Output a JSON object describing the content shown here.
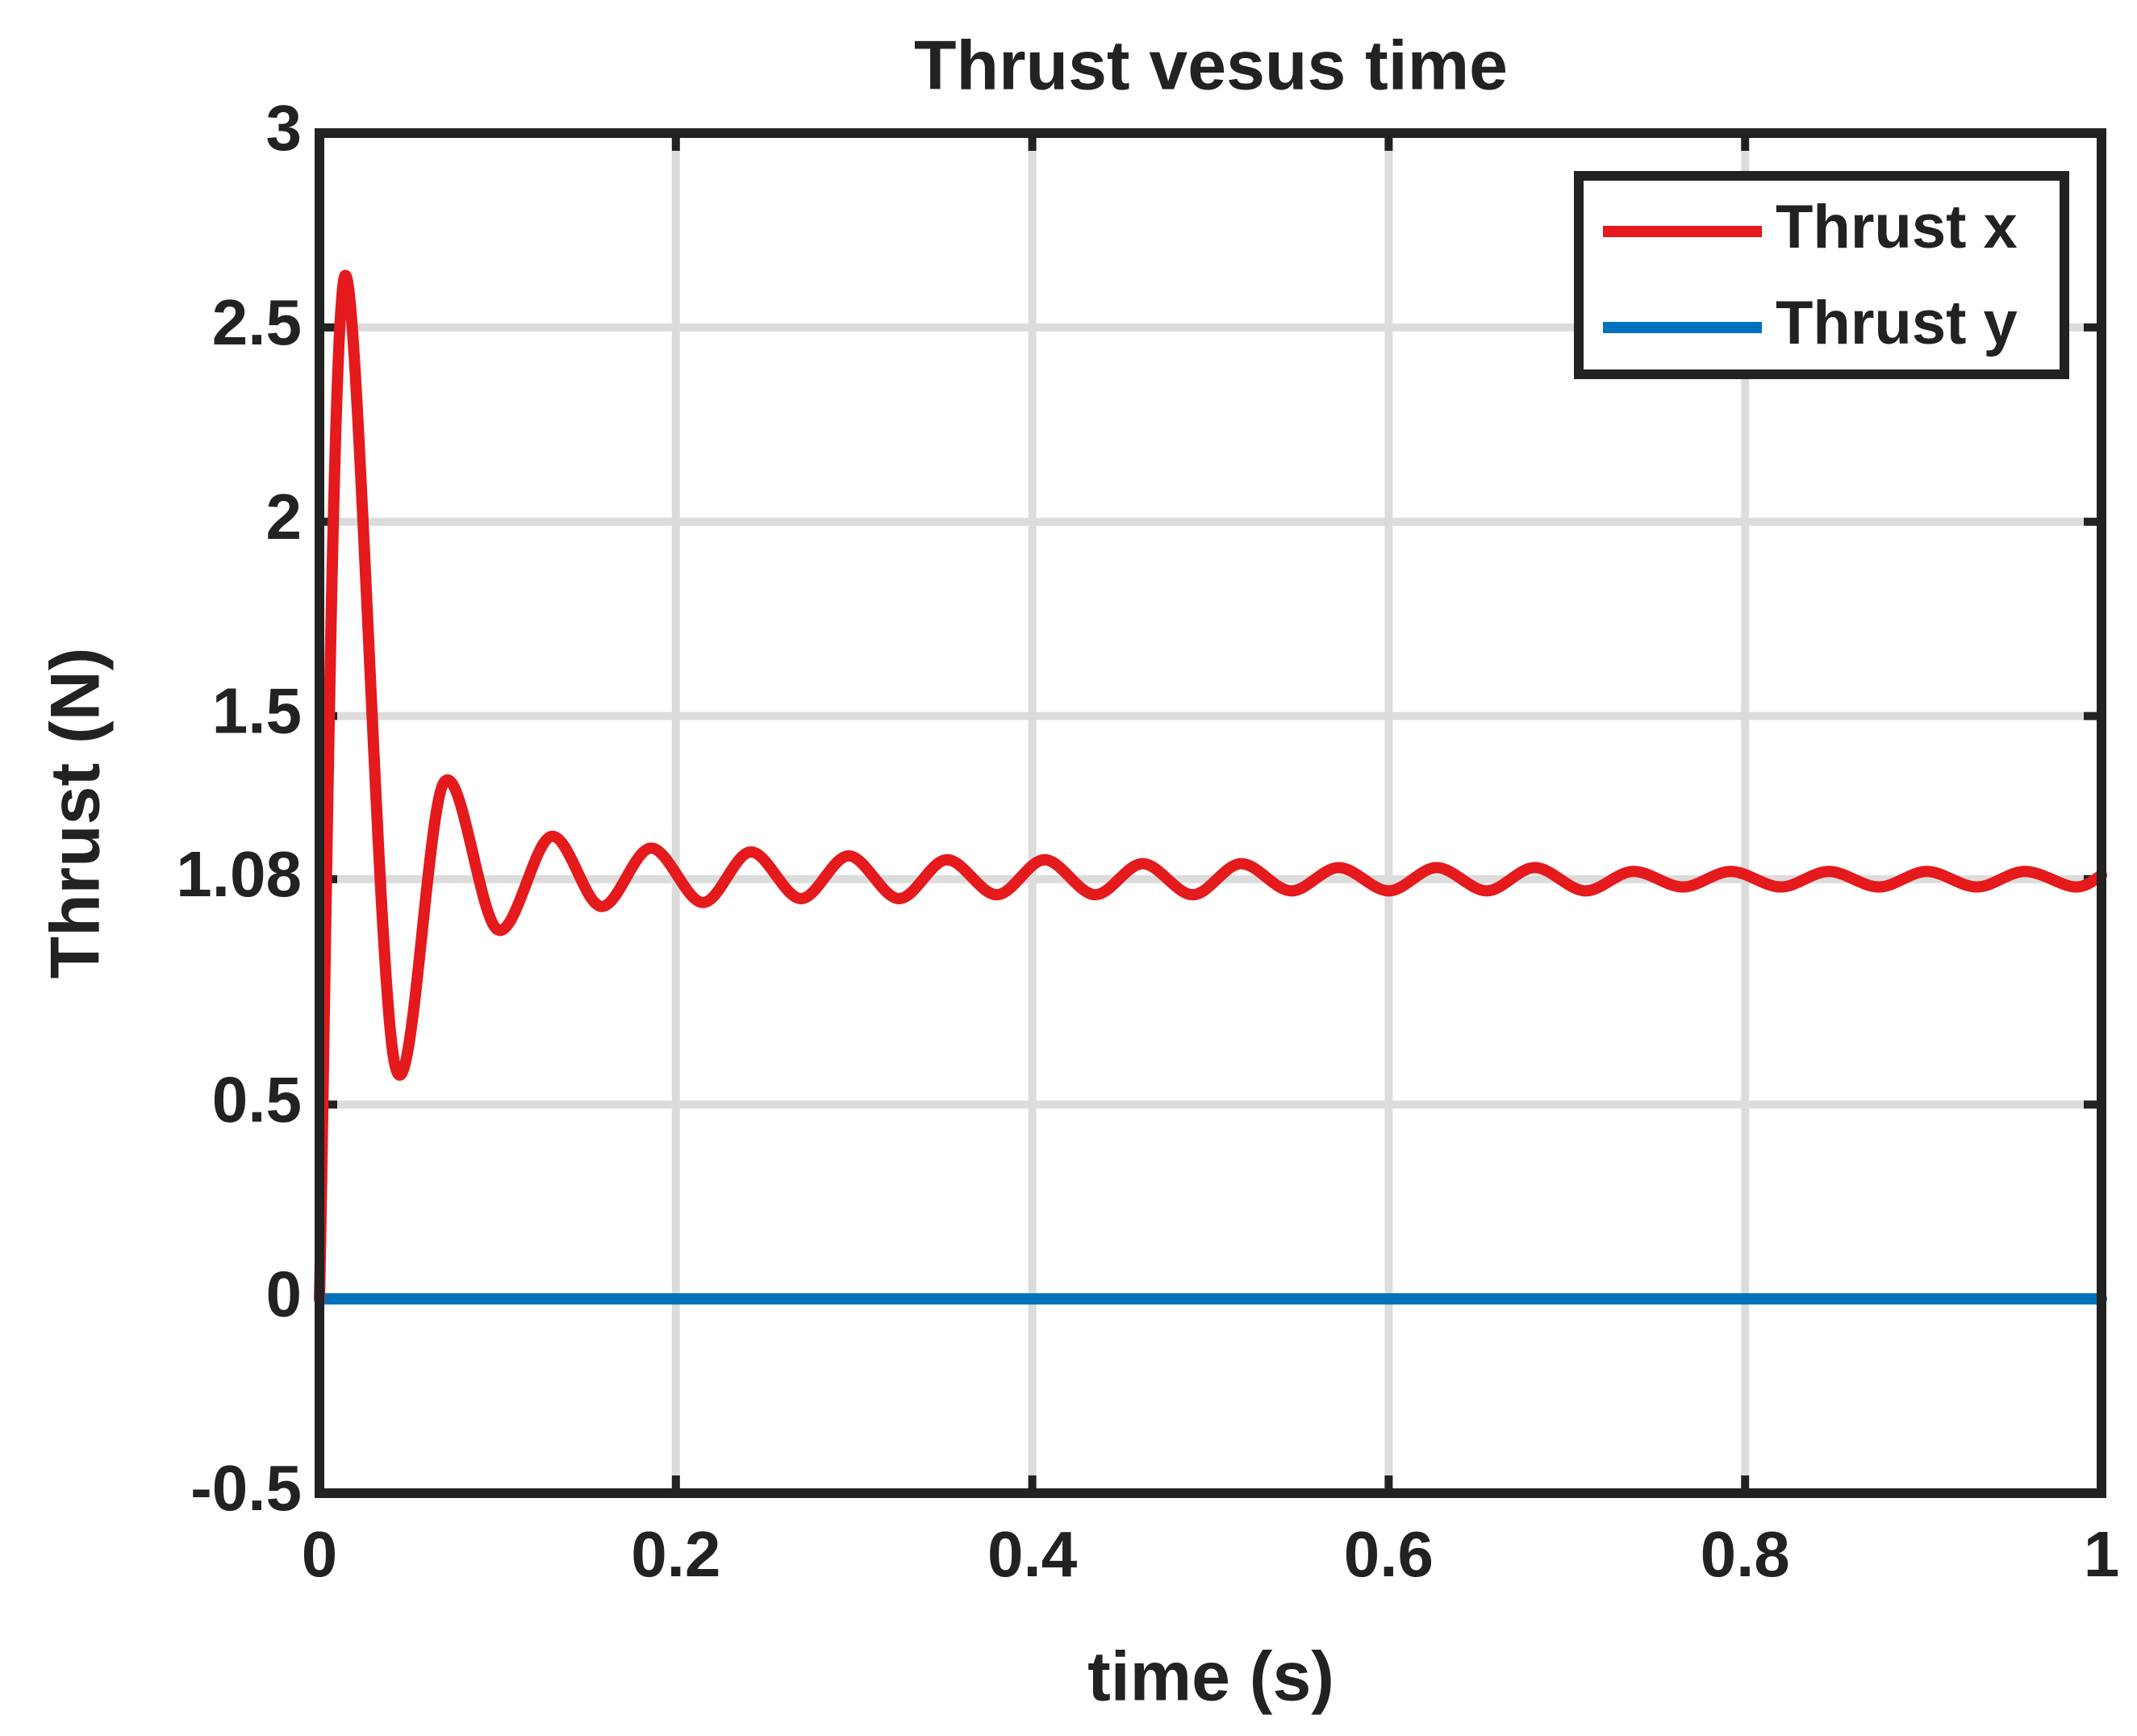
{
  "chart_data": {
    "type": "line",
    "title": "Thrust vesus time",
    "x_label": "time (s)",
    "y_label": "Thrust (N)",
    "series": [
      {
        "name": "Thrust x",
        "color": "#e41a1c",
        "x": [
          0,
          0.014,
          0.042,
          0.07,
          0.1,
          0.13,
          0.158,
          0.186,
          0.215,
          0.242,
          0.27,
          0.297,
          0.325,
          0.352,
          0.38,
          0.407,
          0.435,
          0.462,
          0.49,
          0.517,
          0.545,
          0.572,
          0.6,
          0.627,
          0.655,
          0.682,
          0.71,
          0.737,
          0.765,
          0.792,
          0.82,
          0.847,
          0.875,
          0.902,
          0.93,
          0.957,
          0.985,
          1
        ],
        "values": [
          0,
          2.63,
          0.61,
          1.33,
          0.95,
          1.19,
          1.01,
          1.16,
          1.02,
          1.15,
          1.03,
          1.14,
          1.03,
          1.13,
          1.04,
          1.13,
          1.04,
          1.12,
          1.04,
          1.12,
          1.05,
          1.11,
          1.05,
          1.11,
          1.05,
          1.11,
          1.05,
          1.1,
          1.06,
          1.1,
          1.06,
          1.1,
          1.06,
          1.1,
          1.06,
          1.1,
          1.06,
          1.09
        ]
      },
      {
        "name": "Thrust y",
        "color": "#0072bd",
        "x": [
          0,
          1
        ],
        "values": [
          0,
          0
        ]
      }
    ],
    "xlim": [
      0,
      1
    ],
    "xticks": [
      0,
      0.2,
      0.4,
      0.6,
      0.8,
      1
    ],
    "ylim": [
      -0.5,
      3
    ],
    "yticks": [
      -0.5,
      0,
      0.5,
      1.08,
      1.5,
      2,
      2.5,
      3
    ],
    "grid": true,
    "legend": "northeast"
  }
}
